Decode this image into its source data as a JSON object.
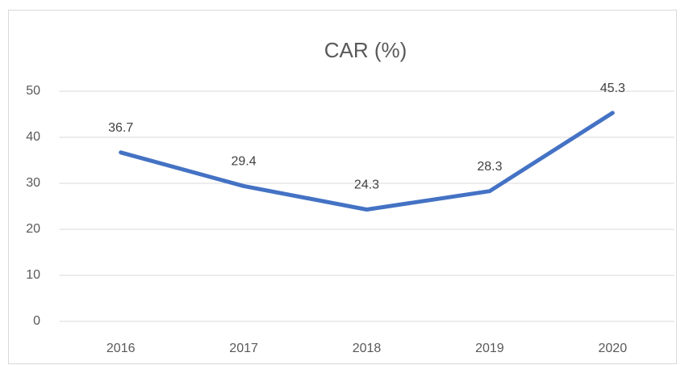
{
  "chart_data": {
    "type": "line",
    "title": "CAR (%)",
    "categories": [
      "2016",
      "2017",
      "2018",
      "2019",
      "2020"
    ],
    "values": [
      36.7,
      29.4,
      24.3,
      28.3,
      45.3
    ],
    "color": "#4472c4",
    "ylim": [
      0,
      50
    ],
    "yticks": [
      0,
      10,
      20,
      30,
      40,
      50
    ],
    "grid": true
  }
}
